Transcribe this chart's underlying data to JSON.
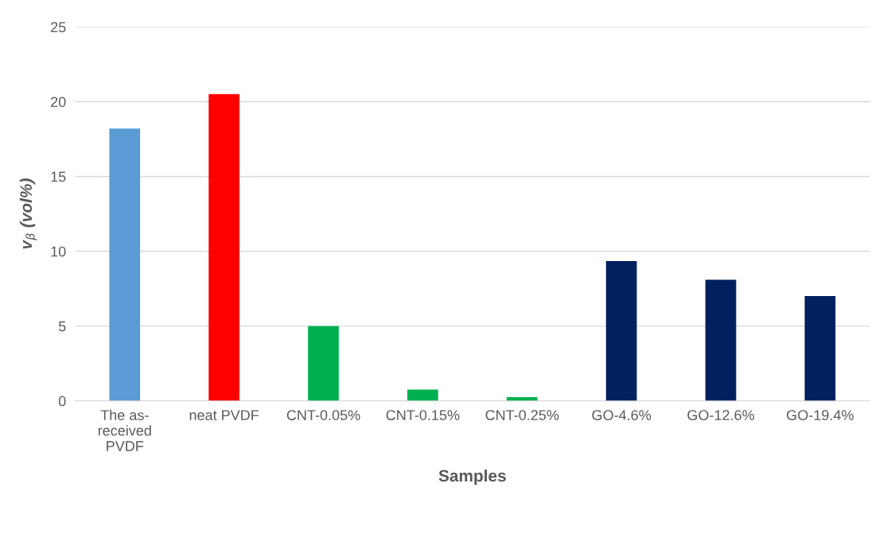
{
  "chart_data": {
    "type": "bar",
    "xlabel": "Samples",
    "ylabel": "v$_{β}$ (vol%)",
    "categories": [
      "The as-\nreceived\nPVDF",
      "neat PVDF",
      "CNT-0.05%",
      "CNT-0.15%",
      "CNT-0.25%",
      "GO-4.6%",
      "GO-12.6%",
      "GO-19.4%"
    ],
    "values": [
      18.2,
      20.5,
      5.0,
      0.75,
      0.25,
      9.35,
      8.1,
      7.0
    ],
    "colors": [
      "#5b9bd5",
      "#ff0000",
      "#00b050",
      "#00b050",
      "#00b050",
      "#002060",
      "#002060",
      "#002060"
    ],
    "ylim": [
      0,
      25
    ],
    "yticks": [
      0,
      5,
      10,
      15,
      20,
      25
    ],
    "grid": "y"
  }
}
